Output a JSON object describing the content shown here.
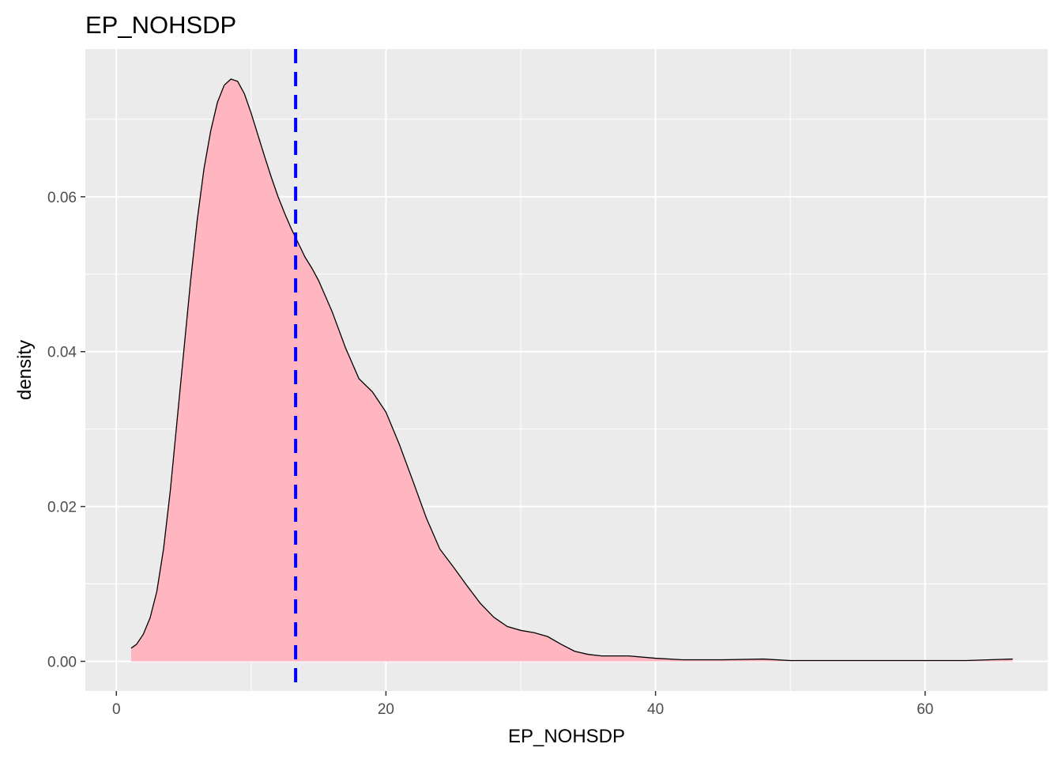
{
  "chart_data": {
    "type": "area",
    "title": "EP_NOHSDP",
    "xlabel": "EP_NOHSDP",
    "ylabel": "density",
    "xlim": [
      -2.3,
      69.1
    ],
    "ylim": [
      -0.00383,
      0.07908
    ],
    "x_ticks": [
      0,
      20,
      40,
      60
    ],
    "x_tick_labels": [
      "0",
      "20",
      "40",
      "60"
    ],
    "y_ticks": [
      0.0,
      0.02,
      0.04,
      0.06
    ],
    "y_tick_labels": [
      "0.00",
      "0.02",
      "0.04",
      "0.06"
    ],
    "grid": true,
    "legend": "none",
    "mean_line_x": 13.3,
    "colors": {
      "panel": "#EBEBEB",
      "grid_major": "#FFFFFF",
      "fill": "#FFB6C1",
      "outline": "#000000",
      "mean_line": "#0000FF",
      "tick_label": "#4D4D4D"
    },
    "series": [
      {
        "x": [
          1.1,
          1.5,
          2,
          2.5,
          3,
          3.5,
          4,
          4.5,
          5,
          5.5,
          6,
          6.5,
          7,
          7.5,
          8,
          8.5,
          9,
          9.5,
          10,
          10.5,
          11,
          11.5,
          12,
          12.5,
          13,
          13.5,
          14,
          14.5,
          15,
          16,
          17,
          18,
          19,
          20,
          21,
          22,
          23,
          24,
          25,
          26,
          27,
          28,
          29,
          30,
          31,
          32,
          33,
          34,
          35,
          36,
          38,
          40,
          42,
          45,
          48,
          50,
          52,
          55,
          58,
          60,
          63,
          66.5
        ],
        "y": [
          0.0017,
          0.0022,
          0.0035,
          0.0056,
          0.009,
          0.0145,
          0.022,
          0.031,
          0.04,
          0.049,
          0.057,
          0.0636,
          0.0685,
          0.0722,
          0.0744,
          0.0752,
          0.0749,
          0.0733,
          0.0708,
          0.068,
          0.0652,
          0.0625,
          0.06,
          0.0578,
          0.0558,
          0.054,
          0.0522,
          0.0508,
          0.0492,
          0.0452,
          0.0405,
          0.0365,
          0.0348,
          0.0322,
          0.028,
          0.0233,
          0.0185,
          0.0145,
          0.0122,
          0.0098,
          0.0075,
          0.0057,
          0.0045,
          0.004,
          0.0037,
          0.0032,
          0.0022,
          0.0013,
          0.0009,
          0.0007,
          0.0007,
          0.0004,
          0.0002,
          0.0002,
          0.0003,
          0.0001,
          0.0001,
          0.0001,
          0.0001,
          0.0001,
          0.0001,
          0.0003
        ]
      }
    ]
  }
}
